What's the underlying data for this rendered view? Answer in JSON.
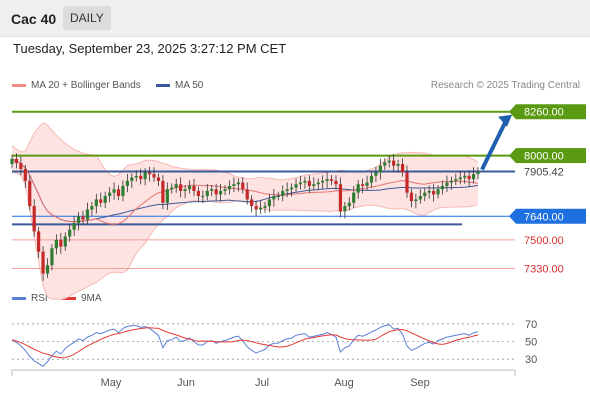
{
  "header": {
    "instrument": "Cac 40",
    "period": "DAILY"
  },
  "timestamp": "Tuesday, September 23, 2025 3:27:12 PM CET",
  "legend": {
    "bollinger": {
      "label": "MA 20 + Bollinger Bands",
      "color": "#f28b82"
    },
    "ma50": {
      "label": "MA 50",
      "color": "#3b5a99"
    }
  },
  "credit": "Research © 2025 Trading Central",
  "rsi_legend": {
    "rsi": {
      "label": "RSI",
      "color": "#5b7fd6"
    },
    "ma9": {
      "label": "9MA",
      "color": "#e53935"
    }
  },
  "colors": {
    "up": "#2e7d32",
    "down": "#c62828",
    "resistance": "#5a9a12",
    "support_box": "#1e6fe0",
    "price_line": "#3b5a99"
  },
  "chart_data": {
    "type": "candlestick",
    "y_range": [
      7250,
      8300
    ],
    "months": [
      "May",
      "Jun",
      "Jul",
      "Aug",
      "Sep"
    ],
    "levels": [
      {
        "value": 8260.0,
        "label": "8260.00",
        "kind": "target"
      },
      {
        "value": 8000.0,
        "label": "8000.00",
        "kind": "resistance"
      },
      {
        "value": 7905.42,
        "label": "7905.42",
        "kind": "last"
      },
      {
        "value": 7640.0,
        "label": "7640.00",
        "kind": "pivot"
      },
      {
        "value": 7500.0,
        "label": "7500.00",
        "kind": "support"
      },
      {
        "value": 7330.0,
        "label": "7330.00",
        "kind": "support"
      }
    ],
    "closes": [
      7980,
      7955,
      7920,
      7850,
      7700,
      7550,
      7430,
      7300,
      7350,
      7450,
      7500,
      7460,
      7520,
      7560,
      7600,
      7640,
      7620,
      7680,
      7700,
      7740,
      7720,
      7760,
      7780,
      7800,
      7760,
      7820,
      7850,
      7870,
      7880,
      7860,
      7900,
      7890,
      7870,
      7850,
      7720,
      7800,
      7810,
      7830,
      7790,
      7800,
      7820,
      7790,
      7760,
      7760,
      7790,
      7800,
      7770,
      7790,
      7800,
      7820,
      7830,
      7840,
      7800,
      7740,
      7700,
      7680,
      7690,
      7700,
      7740,
      7760,
      7760,
      7790,
      7800,
      7810,
      7830,
      7840,
      7850,
      7820,
      7830,
      7840,
      7850,
      7860,
      7850,
      7830,
      7670,
      7700,
      7720,
      7780,
      7830,
      7820,
      7840,
      7880,
      7900,
      7940,
      7960,
      7970,
      7940,
      7950,
      7900,
      7780,
      7730,
      7740,
      7760,
      7780,
      7790,
      7770,
      7800,
      7820,
      7840,
      7850,
      7860,
      7870,
      7880,
      7860,
      7890,
      7905.42
    ],
    "rsi": {
      "levels": [
        70,
        50,
        30
      ],
      "range": [
        20,
        80
      ],
      "values": [
        52,
        49,
        45,
        40,
        33,
        28,
        25,
        22,
        27,
        34,
        39,
        36,
        42,
        46,
        49,
        53,
        51,
        55,
        57,
        60,
        59,
        61,
        63,
        64,
        60,
        65,
        67,
        68,
        68,
        66,
        67,
        65,
        61,
        57,
        43,
        51,
        52,
        55,
        50,
        51,
        54,
        50,
        46,
        46,
        50,
        51,
        48,
        50,
        51,
        53,
        55,
        56,
        51,
        44,
        40,
        37,
        39,
        41,
        46,
        48,
        48,
        51,
        53,
        54,
        57,
        58,
        59,
        55,
        56,
        57,
        58,
        60,
        58,
        55,
        38,
        43,
        45,
        52,
        57,
        56,
        58,
        61,
        63,
        66,
        68,
        69,
        64,
        65,
        58,
        45,
        40,
        42,
        45,
        48,
        49,
        47,
        51,
        53,
        55,
        56,
        57,
        58,
        59,
        57,
        60,
        61
      ]
    }
  }
}
